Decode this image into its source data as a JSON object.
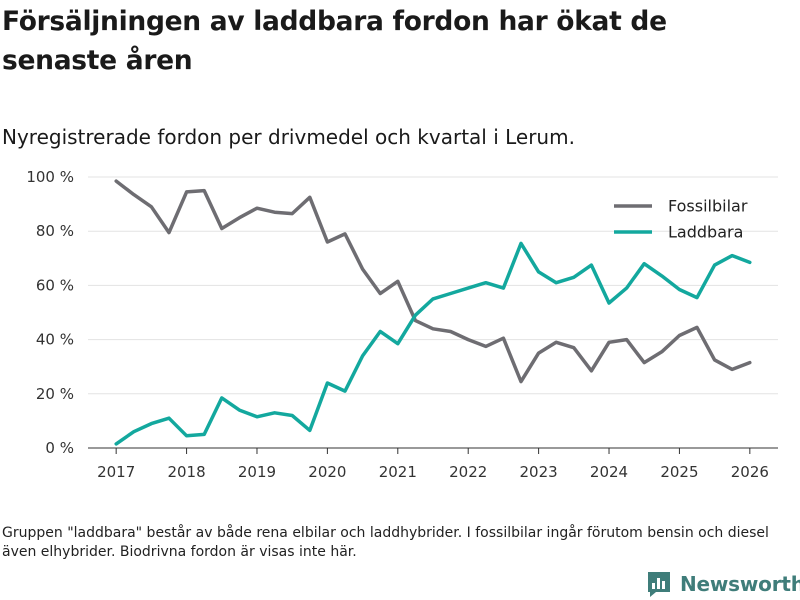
{
  "title": "Försäljningen av laddbara fordon har ökat de senaste åren",
  "subtitle": "Nyregistrerade fordon per drivmedel och kvartal i Lerum.",
  "footnote": "Gruppen \"laddbara\" består av både rena elbilar och laddhybrider. I fossilbilar ingår förutom bensin och diesel även elhybrider. Biodrivna fordon är visas inte här.",
  "logo": {
    "text": "Newsworthy",
    "icon": "bar-chart-logo-icon",
    "color": "#3f7d7a"
  },
  "chart_data": {
    "type": "line",
    "title": "Nyregistrerade fordon per drivmedel och kvartal i Lerum.",
    "xlabel": "",
    "ylabel": "",
    "x": [
      2017.0,
      2017.25,
      2017.5,
      2017.75,
      2018.0,
      2018.25,
      2018.5,
      2018.75,
      2019.0,
      2019.25,
      2019.5,
      2019.75,
      2020.0,
      2020.25,
      2020.5,
      2020.75,
      2021.0,
      2021.25,
      2021.5,
      2021.75,
      2022.0,
      2022.25,
      2022.5,
      2022.75,
      2023.0,
      2023.25,
      2023.5,
      2023.75,
      2024.0,
      2024.25,
      2024.5,
      2024.75,
      2025.0,
      2025.25,
      2025.5,
      2025.75,
      2026.0
    ],
    "xlim": [
      2016.6,
      2026.4
    ],
    "ylim": [
      0,
      100
    ],
    "x_ticks": [
      2017,
      2018,
      2019,
      2020,
      2021,
      2022,
      2023,
      2024,
      2025,
      2026
    ],
    "x_tick_labels": [
      "2017",
      "2018",
      "2019",
      "2020",
      "2021",
      "2022",
      "2023",
      "2024",
      "2025",
      "2026"
    ],
    "y_ticks": [
      0,
      20,
      40,
      60,
      80,
      100
    ],
    "y_tick_labels": [
      "0 %",
      "20 %",
      "40 %",
      "60 %",
      "80 %",
      "100 %"
    ],
    "grid": true,
    "legend_position": "top-right",
    "series": [
      {
        "name": "Fossilbilar",
        "color": "#6e6d72",
        "values": [
          98.5,
          93.5,
          89,
          79.5,
          94.5,
          95,
          81,
          85,
          88.5,
          87,
          86.5,
          92.5,
          76,
          79,
          66,
          57,
          61.5,
          47,
          44,
          43,
          40,
          37.5,
          40.5,
          24.5,
          35,
          39,
          37,
          28.5,
          39,
          40,
          31.5,
          35.5,
          41.5,
          44.5,
          32.5,
          29,
          31.5
        ]
      },
      {
        "name": "Laddbara",
        "color": "#13a89e",
        "values": [
          1.5,
          6,
          9,
          11,
          4.5,
          5,
          18.5,
          14,
          11.5,
          13,
          12,
          6.5,
          24,
          21,
          34,
          43,
          38.5,
          49,
          55,
          57,
          59,
          61,
          59,
          75.5,
          65,
          61,
          63,
          67.5,
          53.5,
          59,
          68,
          63.5,
          58.5,
          55.5,
          67.5,
          71,
          68.5
        ]
      }
    ]
  }
}
